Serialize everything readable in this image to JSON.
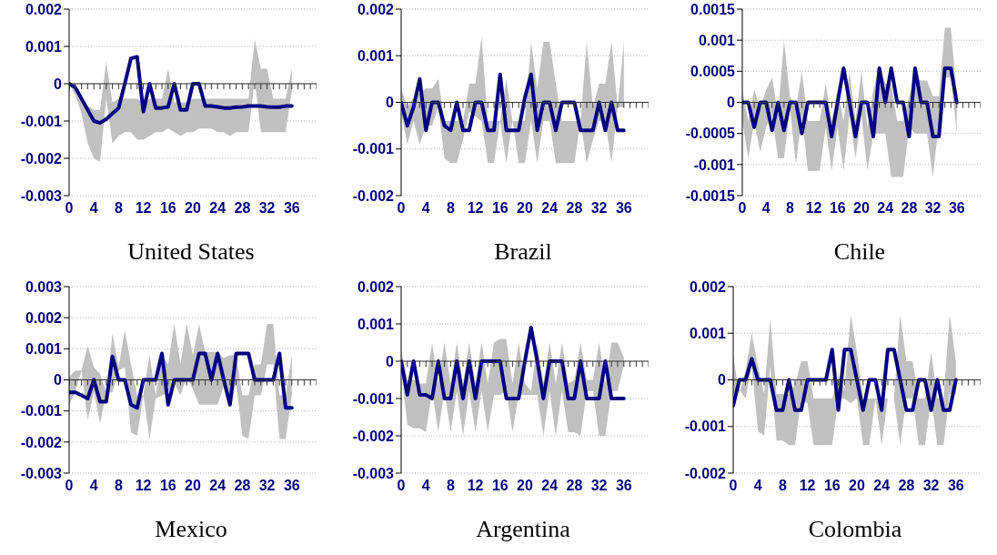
{
  "chart_data": [
    {
      "type": "line",
      "title": "United States",
      "x": [
        0,
        1,
        2,
        3,
        4,
        5,
        6,
        7,
        8,
        9,
        10,
        11,
        12,
        13,
        14,
        15,
        16,
        17,
        18,
        19,
        20,
        21,
        22,
        23,
        24,
        25,
        26,
        27,
        28,
        29,
        30,
        31,
        32,
        33,
        34,
        35,
        36
      ],
      "xlim": [
        0,
        40
      ],
      "xticks": [
        0,
        {
          "value": 1,
          "label": null
        },
        {
          "value": 2,
          "label": null
        },
        {
          "value": 3,
          "label": null
        },
        4,
        {
          "value": 5,
          "label": null
        },
        {
          "value": 6,
          "label": null
        },
        {
          "value": 7,
          "label": null
        },
        8,
        {
          "value": 9,
          "label": null
        },
        {
          "value": 10,
          "label": null
        },
        {
          "value": 11,
          "label": null
        },
        12,
        {
          "value": 13,
          "label": null
        },
        {
          "value": 14,
          "label": null
        },
        {
          "value": 15,
          "label": null
        },
        16,
        {
          "value": 17,
          "label": null
        },
        {
          "value": 18,
          "label": null
        },
        {
          "value": 19,
          "label": null
        },
        20,
        {
          "value": 21,
          "label": null
        },
        {
          "value": 22,
          "label": null
        },
        {
          "value": 23,
          "label": null
        },
        24,
        {
          "value": 25,
          "label": null
        },
        {
          "value": 26,
          "label": null
        },
        {
          "value": 27,
          "label": null
        },
        28,
        {
          "value": 29,
          "label": null
        },
        {
          "value": 30,
          "label": null
        },
        {
          "value": 31,
          "label": null
        },
        32,
        {
          "value": 33,
          "label": null
        },
        {
          "value": 34,
          "label": null
        },
        {
          "value": 35,
          "label": null
        },
        36,
        {
          "value": 37,
          "label": null
        },
        {
          "value": 38,
          "label": null
        },
        {
          "value": 39,
          "label": null
        },
        {
          "value": 40,
          "label": null
        }
      ],
      "ylim": [
        -0.003,
        0.002
      ],
      "yticks": [
        -0.003,
        -0.002,
        -0.001,
        0,
        0.001,
        0.002
      ],
      "grid": "y",
      "marker": "none",
      "line_style": "solid",
      "series": [
        {
          "color": "#000080",
          "values": [
            0,
            -0.0001,
            -0.0004,
            -0.0007,
            -0.001,
            -0.00105,
            -0.00095,
            -0.0008,
            -0.00065,
            0.0,
            0.00068,
            0.00072,
            -0.00075,
            0,
            -0.00065,
            -0.00065,
            -0.00062,
            0,
            -0.0007,
            -0.0007,
            0,
            0,
            -0.0006,
            -0.0006,
            -0.00062,
            -0.00065,
            -0.00065,
            -0.00063,
            -0.00062,
            -0.0006,
            -0.0006,
            -0.0006,
            -0.00062,
            -0.00063,
            -0.00063,
            -0.0006,
            -0.0006
          ],
          "upper": [
            0,
            -0.0001,
            -0.0004,
            -0.0006,
            -0.0007,
            -0.0007,
            0.0006,
            -0.0005,
            -0.0004,
            -0.0004,
            -0.0004,
            -0.0004,
            -0.0005,
            -0.0004,
            -0.0004,
            -0.0004,
            0.0004,
            -0.0005,
            -0.0005,
            -0.0005,
            -0.0004,
            -0.0004,
            -0.0004,
            -0.0004,
            -0.0004,
            -0.0004,
            -0.0004,
            -0.0004,
            -0.0004,
            -0.0004,
            0.0012,
            0.0004,
            0.0004,
            -0.0004,
            -0.0004,
            -0.0004,
            0.0004
          ],
          "lower": [
            0,
            -0.0003,
            -0.0008,
            -0.0016,
            -0.002,
            -0.0021,
            -0.0004,
            -0.0016,
            -0.0014,
            -0.0013,
            -0.0013,
            -0.0015,
            -0.0015,
            -0.0014,
            -0.0013,
            -0.0013,
            -0.0012,
            -0.0013,
            -0.0014,
            -0.0013,
            -0.0013,
            -0.0012,
            -0.0012,
            -0.0012,
            -0.0013,
            -0.0013,
            -0.0014,
            -0.0013,
            -0.0013,
            -0.0013,
            0.0001,
            -0.0013,
            -0.0013,
            -0.0013,
            -0.0013,
            -0.0013,
            -0.0002
          ]
        }
      ]
    },
    {
      "type": "line",
      "title": "Brazil",
      "x": [
        0,
        1,
        2,
        3,
        4,
        5,
        6,
        7,
        8,
        9,
        10,
        11,
        12,
        13,
        14,
        15,
        16,
        17,
        18,
        19,
        20,
        21,
        22,
        23,
        24,
        25,
        26,
        27,
        28,
        29,
        30,
        31,
        32,
        33,
        34,
        35,
        36
      ],
      "xlim": [
        0,
        40
      ],
      "xticks": [
        0,
        {
          "value": 1,
          "label": null
        },
        {
          "value": 2,
          "label": null
        },
        {
          "value": 3,
          "label": null
        },
        4,
        {
          "value": 5,
          "label": null
        },
        {
          "value": 6,
          "label": null
        },
        {
          "value": 7,
          "label": null
        },
        8,
        {
          "value": 9,
          "label": null
        },
        {
          "value": 10,
          "label": null
        },
        {
          "value": 11,
          "label": null
        },
        12,
        {
          "value": 13,
          "label": null
        },
        {
          "value": 14,
          "label": null
        },
        {
          "value": 15,
          "label": null
        },
        16,
        {
          "value": 17,
          "label": null
        },
        {
          "value": 18,
          "label": null
        },
        {
          "value": 19,
          "label": null
        },
        20,
        {
          "value": 21,
          "label": null
        },
        {
          "value": 22,
          "label": null
        },
        {
          "value": 23,
          "label": null
        },
        24,
        {
          "value": 25,
          "label": null
        },
        {
          "value": 26,
          "label": null
        },
        {
          "value": 27,
          "label": null
        },
        28,
        {
          "value": 29,
          "label": null
        },
        {
          "value": 30,
          "label": null
        },
        {
          "value": 31,
          "label": null
        },
        32,
        {
          "value": 33,
          "label": null
        },
        {
          "value": 34,
          "label": null
        },
        {
          "value": 35,
          "label": null
        },
        36,
        {
          "value": 37,
          "label": null
        },
        {
          "value": 38,
          "label": null
        },
        {
          "value": 39,
          "label": null
        },
        {
          "value": 40,
          "label": null
        }
      ],
      "ylim": [
        -0.002,
        0.002
      ],
      "yticks": [
        -0.002,
        -0.001,
        0,
        0.001,
        0.002
      ],
      "grid": "y",
      "marker": "none",
      "line_style": "solid",
      "series": [
        {
          "color": "#000080",
          "values": [
            0,
            -0.0005,
            -0.0001,
            0.0005,
            -0.0006,
            0,
            0,
            -0.0005,
            -0.0006,
            0,
            -0.0006,
            -0.0006,
            0,
            0,
            -0.0006,
            -0.0006,
            0.0006,
            -0.0006,
            -0.0006,
            -0.0006,
            0.0001,
            0.0006,
            -0.0006,
            0,
            0,
            -0.0006,
            0,
            0,
            0,
            -0.0006,
            -0.0006,
            -0.0006,
            0,
            -0.0006,
            0,
            -0.0006,
            -0.0006
          ],
          "upper": [
            0.0003,
            -0.0001,
            0.0001,
            0.0002,
            0.0003,
            0.0003,
            0.0005,
            -0.0004,
            -0.0004,
            -0.0004,
            -0.0004,
            0.0004,
            0.0004,
            0.0014,
            -0.0004,
            -0.0004,
            -0.0004,
            0.0005,
            -0.0004,
            -0.0004,
            -0.0004,
            0.0013,
            0.0003,
            0.0013,
            0.0013,
            0.0004,
            -0.0004,
            -0.0004,
            -0.0004,
            -0.0004,
            0.0013,
            -0.0001,
            0.0004,
            0.0004,
            0.0013,
            -0.0001,
            0.0013
          ],
          "lower": [
            -0.0002,
            -0.0009,
            -0.0004,
            -0.0009,
            -0.0005,
            -0.0005,
            -0.0001,
            -0.0012,
            -0.0013,
            -0.0013,
            -0.0008,
            -0.0002,
            -0.0003,
            -0.0004,
            -0.0013,
            -0.0013,
            -0.0004,
            -0.0013,
            -0.0004,
            -0.0013,
            -0.0013,
            -0.0004,
            -0.0013,
            -0.0004,
            -0.0004,
            -0.0013,
            -0.0013,
            -0.0013,
            -0.0013,
            -0.0004,
            -0.0013,
            -0.0008,
            -0.0004,
            -0.0004,
            -0.0013,
            -0.0001,
            -0.0001
          ]
        }
      ]
    },
    {
      "type": "line",
      "title": "Chile",
      "x": [
        0,
        1,
        2,
        3,
        4,
        5,
        6,
        7,
        8,
        9,
        10,
        11,
        12,
        13,
        14,
        15,
        16,
        17,
        18,
        19,
        20,
        21,
        22,
        23,
        24,
        25,
        26,
        27,
        28,
        29,
        30,
        31,
        32,
        33,
        34,
        35,
        36
      ],
      "xlim": [
        0,
        40
      ],
      "xticks": [
        0,
        {
          "value": 1,
          "label": null
        },
        {
          "value": 2,
          "label": null
        },
        {
          "value": 3,
          "label": null
        },
        4,
        {
          "value": 5,
          "label": null
        },
        {
          "value": 6,
          "label": null
        },
        {
          "value": 7,
          "label": null
        },
        8,
        {
          "value": 9,
          "label": null
        },
        {
          "value": 10,
          "label": null
        },
        {
          "value": 11,
          "label": null
        },
        12,
        {
          "value": 13,
          "label": null
        },
        {
          "value": 14,
          "label": null
        },
        {
          "value": 15,
          "label": null
        },
        16,
        {
          "value": 17,
          "label": null
        },
        {
          "value": 18,
          "label": null
        },
        {
          "value": 19,
          "label": null
        },
        20,
        {
          "value": 21,
          "label": null
        },
        {
          "value": 22,
          "label": null
        },
        {
          "value": 23,
          "label": null
        },
        24,
        {
          "value": 25,
          "label": null
        },
        {
          "value": 26,
          "label": null
        },
        {
          "value": 27,
          "label": null
        },
        28,
        {
          "value": 29,
          "label": null
        },
        {
          "value": 30,
          "label": null
        },
        {
          "value": 31,
          "label": null
        },
        32,
        {
          "value": 33,
          "label": null
        },
        {
          "value": 34,
          "label": null
        },
        {
          "value": 35,
          "label": null
        },
        36,
        {
          "value": 37,
          "label": null
        },
        {
          "value": 38,
          "label": null
        },
        {
          "value": 39,
          "label": null
        },
        {
          "value": 40,
          "label": null
        }
      ],
      "ylim": [
        -0.0015,
        0.0015
      ],
      "yticks": [
        -0.0015,
        -0.001,
        -0.0005,
        0,
        0.0005,
        0.001,
        0.0015
      ],
      "grid": "y",
      "marker": "none",
      "line_style": "solid",
      "series": [
        {
          "color": "#000080",
          "values": [
            0,
            0,
            -0.0004,
            0,
            0,
            -0.00045,
            0,
            -0.00045,
            0,
            0,
            -0.0005,
            0,
            0,
            0,
            0,
            -0.00055,
            0,
            0.00055,
            0,
            -0.00055,
            0,
            0,
            -0.00055,
            0.00055,
            0,
            0.00055,
            0,
            0,
            -0.00055,
            0.00055,
            0,
            0,
            -0.00055,
            -0.00055,
            0.00055,
            0.00055,
            0
          ],
          "upper": [
            0.0002,
            -0.0003,
            0.0002,
            -0.0001,
            0.0002,
            0.0004,
            -0.0002,
            0.001,
            0.0001,
            -0.0001,
            0.0005,
            -0.0003,
            -0.0003,
            -0.0003,
            0.0003,
            -0.0003,
            0.0002,
            -0.0003,
            0.0005,
            -0.0003,
            0.0005,
            -0.0004,
            0.0002,
            0.0006,
            0.0003,
            0.0003,
            -0.0003,
            -0.0003,
            0.0001,
            0.0004,
            0.00035,
            0.00035,
            0.0001,
            0.0001,
            0.0012,
            0.0012,
            0.0001
          ],
          "lower": [
            -0.0003,
            -0.0009,
            -0.0003,
            -0.0008,
            -0.0004,
            -0.0002,
            -0.0009,
            -0.0009,
            -0.0001,
            -0.001,
            -0.0002,
            -0.0011,
            -0.0011,
            -0.0011,
            -0.0004,
            -0.0011,
            -0.0004,
            -0.0011,
            -0.0002,
            -0.0009,
            -0.0002,
            -0.0011,
            -0.0005,
            -0.0005,
            -0.0005,
            -0.0012,
            -0.0012,
            -0.0012,
            -0.0004,
            -0.0005,
            -0.0005,
            -0.0005,
            -0.0012,
            -0.0003,
            0.0004,
            0.0004,
            -0.0005
          ]
        }
      ]
    },
    {
      "type": "line",
      "title": "Mexico",
      "x": [
        0,
        1,
        2,
        3,
        4,
        5,
        6,
        7,
        8,
        9,
        10,
        11,
        12,
        13,
        14,
        15,
        16,
        17,
        18,
        19,
        20,
        21,
        22,
        23,
        24,
        25,
        26,
        27,
        28,
        29,
        30,
        31,
        32,
        33,
        34,
        35,
        36
      ],
      "xlim": [
        0,
        40
      ],
      "xticks": [
        0,
        {
          "value": 1,
          "label": null
        },
        {
          "value": 2,
          "label": null
        },
        {
          "value": 3,
          "label": null
        },
        4,
        {
          "value": 5,
          "label": null
        },
        {
          "value": 6,
          "label": null
        },
        {
          "value": 7,
          "label": null
        },
        8,
        {
          "value": 9,
          "label": null
        },
        {
          "value": 10,
          "label": null
        },
        {
          "value": 11,
          "label": null
        },
        12,
        {
          "value": 13,
          "label": null
        },
        {
          "value": 14,
          "label": null
        },
        {
          "value": 15,
          "label": null
        },
        16,
        {
          "value": 17,
          "label": null
        },
        {
          "value": 18,
          "label": null
        },
        {
          "value": 19,
          "label": null
        },
        20,
        {
          "value": 21,
          "label": null
        },
        {
          "value": 22,
          "label": null
        },
        {
          "value": 23,
          "label": null
        },
        24,
        {
          "value": 25,
          "label": null
        },
        {
          "value": 26,
          "label": null
        },
        {
          "value": 27,
          "label": null
        },
        28,
        {
          "value": 29,
          "label": null
        },
        {
          "value": 30,
          "label": null
        },
        {
          "value": 31,
          "label": null
        },
        32,
        {
          "value": 33,
          "label": null
        },
        {
          "value": 34,
          "label": null
        },
        {
          "value": 35,
          "label": null
        },
        36,
        {
          "value": 37,
          "label": null
        },
        {
          "value": 38,
          "label": null
        },
        {
          "value": 39,
          "label": null
        },
        {
          "value": 40,
          "label": null
        }
      ],
      "ylim": [
        -0.003,
        0.003
      ],
      "yticks": [
        -0.003,
        -0.002,
        -0.001,
        0,
        0.001,
        0.002,
        0.003
      ],
      "grid": "y",
      "marker": "none",
      "line_style": "solid",
      "series": [
        {
          "color": "#000080",
          "values": [
            -0.0004,
            -0.0004,
            -0.0005,
            -0.0006,
            0,
            -0.0007,
            -0.0007,
            0.00075,
            0,
            0,
            -0.0008,
            -0.0009,
            0,
            0,
            0,
            0.00085,
            -0.0008,
            0,
            0,
            0,
            0,
            0.00085,
            0.00085,
            0,
            0.00085,
            0,
            -0.0008,
            0.00085,
            0.00085,
            0.00085,
            0,
            0,
            0,
            0,
            0.00085,
            -0.0009,
            -0.0009
          ],
          "upper": [
            0.0001,
            0.0003,
            0.0003,
            0.0011,
            0.0004,
            0.0002,
            -0.0004,
            0.0015,
            0.0004,
            0.0016,
            0.0005,
            -0.0005,
            -0.0005,
            0.0008,
            -0.0005,
            0.0008,
            0.0005,
            0.0018,
            0.0005,
            0.0018,
            0.0008,
            0.0018,
            0.0009,
            0.0009,
            0.0009,
            0.0007,
            0.0008,
            0.0008,
            -0.0005,
            -0.0005,
            0.0005,
            0.0005,
            0.0018,
            0.0018,
            -0.0005,
            -0.0005,
            0.0008
          ],
          "lower": [
            -0.0008,
            -0.0004,
            0.0003,
            -0.0013,
            -0.0004,
            -0.0014,
            -0.0004,
            -0.0004,
            0.0003,
            0.0004,
            -0.0017,
            -0.0018,
            -0.0005,
            -0.0019,
            -0.0006,
            -0.0005,
            -0.0004,
            -0.0001,
            -0.0005,
            0.0001,
            -0.0003,
            -0.0008,
            -0.0008,
            -0.0008,
            -0.0008,
            -0.0002,
            -0.0009,
            -0.0001,
            -0.0018,
            -0.0019,
            -0.0005,
            -0.0005,
            0.0005,
            0.0005,
            -0.0019,
            -0.0019,
            -0.0005
          ]
        }
      ]
    },
    {
      "type": "line",
      "title": "Argentina",
      "x": [
        0,
        1,
        2,
        3,
        4,
        5,
        6,
        7,
        8,
        9,
        10,
        11,
        12,
        13,
        14,
        15,
        16,
        17,
        18,
        19,
        20,
        21,
        22,
        23,
        24,
        25,
        26,
        27,
        28,
        29,
        30,
        31,
        32,
        33,
        34,
        35,
        36
      ],
      "xlim": [
        0,
        40
      ],
      "xticks": [
        0,
        {
          "value": 1,
          "label": null
        },
        {
          "value": 2,
          "label": null
        },
        {
          "value": 3,
          "label": null
        },
        4,
        {
          "value": 5,
          "label": null
        },
        {
          "value": 6,
          "label": null
        },
        {
          "value": 7,
          "label": null
        },
        8,
        {
          "value": 9,
          "label": null
        },
        {
          "value": 10,
          "label": null
        },
        {
          "value": 11,
          "label": null
        },
        12,
        {
          "value": 13,
          "label": null
        },
        {
          "value": 14,
          "label": null
        },
        {
          "value": 15,
          "label": null
        },
        16,
        {
          "value": 17,
          "label": null
        },
        {
          "value": 18,
          "label": null
        },
        {
          "value": 19,
          "label": null
        },
        20,
        {
          "value": 21,
          "label": null
        },
        {
          "value": 22,
          "label": null
        },
        {
          "value": 23,
          "label": null
        },
        24,
        {
          "value": 25,
          "label": null
        },
        {
          "value": 26,
          "label": null
        },
        {
          "value": 27,
          "label": null
        },
        28,
        {
          "value": 29,
          "label": null
        },
        {
          "value": 30,
          "label": null
        },
        {
          "value": 31,
          "label": null
        },
        32,
        {
          "value": 33,
          "label": null
        },
        {
          "value": 34,
          "label": null
        },
        {
          "value": 35,
          "label": null
        },
        36,
        {
          "value": 37,
          "label": null
        },
        {
          "value": 38,
          "label": null
        },
        {
          "value": 39,
          "label": null
        },
        {
          "value": 40,
          "label": null
        }
      ],
      "ylim": [
        -0.003,
        0.002
      ],
      "yticks": [
        -0.003,
        -0.002,
        -0.001,
        0,
        0.001,
        0.002
      ],
      "grid": "y",
      "marker": "none",
      "line_style": "solid",
      "series": [
        {
          "color": "#000080",
          "values": [
            0,
            -0.0009,
            0,
            -0.0009,
            -0.0009,
            -0.001,
            0,
            -0.001,
            -0.001,
            0,
            -0.001,
            0,
            -0.001,
            0,
            0,
            0,
            0,
            -0.001,
            -0.001,
            -0.001,
            0,
            0.0009,
            0,
            -0.001,
            0,
            0,
            0,
            -0.001,
            -0.001,
            0,
            -0.001,
            -0.001,
            -0.001,
            0,
            -0.001,
            -0.001,
            -0.001
          ],
          "upper": [
            0.0003,
            -0.0005,
            -0.0005,
            -0.0006,
            -0.0006,
            0.0005,
            -0.0006,
            0.0005,
            -0.0006,
            0.0005,
            -0.0006,
            0.0005,
            -0.0006,
            0.0005,
            -0.0006,
            0.0005,
            0.0006,
            0.0006,
            -0.0006,
            0.0005,
            -0.0006,
            -0.0008,
            0.0005,
            -0.0006,
            0.0005,
            -0.0006,
            0.0005,
            -0.0006,
            -0.0005,
            0.0005,
            -0.0005,
            -0.0005,
            0.0005,
            -0.0006,
            0.0005,
            0.0005,
            0.0001
          ],
          "lower": [
            -0.0002,
            -0.0017,
            -0.0018,
            -0.0018,
            -0.0019,
            -0.0008,
            -0.0019,
            -0.0008,
            -0.0019,
            -0.0008,
            -0.002,
            -0.0008,
            -0.0019,
            -0.0008,
            -0.0019,
            -0.0009,
            -0.0009,
            -0.0008,
            -0.0019,
            -0.0009,
            -0.0009,
            -0.0009,
            -0.0009,
            -0.002,
            -0.0008,
            -0.002,
            -0.0008,
            -0.0019,
            -0.0019,
            -0.002,
            -0.0008,
            -0.0008,
            -0.002,
            -0.002,
            -0.0008,
            -0.0008,
            -0.0001
          ]
        }
      ]
    },
    {
      "type": "line",
      "title": "Colombia",
      "x": [
        0,
        1,
        2,
        3,
        4,
        5,
        6,
        7,
        8,
        9,
        10,
        11,
        12,
        13,
        14,
        15,
        16,
        17,
        18,
        19,
        20,
        21,
        22,
        23,
        24,
        25,
        26,
        27,
        28,
        29,
        30,
        31,
        32,
        33,
        34,
        35,
        36
      ],
      "xlim": [
        0,
        40
      ],
      "xticks": [
        0,
        {
          "value": 1,
          "label": null
        },
        {
          "value": 2,
          "label": null
        },
        {
          "value": 3,
          "label": null
        },
        4,
        {
          "value": 5,
          "label": null
        },
        {
          "value": 6,
          "label": null
        },
        {
          "value": 7,
          "label": null
        },
        8,
        {
          "value": 9,
          "label": null
        },
        {
          "value": 10,
          "label": null
        },
        {
          "value": 11,
          "label": null
        },
        12,
        {
          "value": 13,
          "label": null
        },
        {
          "value": 14,
          "label": null
        },
        {
          "value": 15,
          "label": null
        },
        16,
        {
          "value": 17,
          "label": null
        },
        {
          "value": 18,
          "label": null
        },
        {
          "value": 19,
          "label": null
        },
        20,
        {
          "value": 21,
          "label": null
        },
        {
          "value": 22,
          "label": null
        },
        {
          "value": 23,
          "label": null
        },
        24,
        {
          "value": 25,
          "label": null
        },
        {
          "value": 26,
          "label": null
        },
        {
          "value": 27,
          "label": null
        },
        28,
        {
          "value": 29,
          "label": null
        },
        {
          "value": 30,
          "label": null
        },
        {
          "value": 31,
          "label": null
        },
        32,
        {
          "value": 33,
          "label": null
        },
        {
          "value": 34,
          "label": null
        },
        {
          "value": 35,
          "label": null
        },
        36,
        {
          "value": 37,
          "label": null
        },
        {
          "value": 38,
          "label": null
        },
        {
          "value": 39,
          "label": null
        },
        {
          "value": 40,
          "label": null
        }
      ],
      "ylim": [
        -0.002,
        0.002
      ],
      "yticks": [
        -0.002,
        -0.001,
        0,
        0.001,
        0.002
      ],
      "grid": "y",
      "marker": "none",
      "line_style": "solid",
      "series": [
        {
          "color": "#000080",
          "values": [
            -0.00055,
            0,
            0,
            0.00045,
            0,
            0,
            0,
            -0.00065,
            -0.00065,
            0,
            -0.00065,
            -0.00065,
            0,
            0,
            0,
            0,
            0.00065,
            -0.00065,
            0.00065,
            0.00065,
            0,
            -0.00065,
            0,
            0,
            -0.00065,
            0.00065,
            0.00065,
            0,
            -0.00065,
            -0.00065,
            0,
            0,
            -0.00065,
            0,
            -0.00065,
            -0.00065,
            0
          ],
          "upper": [
            0.0005,
            -0.0003,
            0.0002,
            0.001,
            0.0003,
            -0.0003,
            0.0013,
            -0.0003,
            -0.0003,
            -0.0003,
            -0.0001,
            0.0004,
            0.0004,
            -0.0004,
            -0.0004,
            -0.0004,
            -0.0004,
            0.0001,
            -0.0002,
            0.0014,
            0.0006,
            -0.0004,
            -0.0004,
            -0.0004,
            -0.0004,
            -0.0004,
            -0.0004,
            0.0014,
            0.0004,
            0.0004,
            -0.0004,
            -0.0004,
            0.0006,
            -0.0004,
            -0.0004,
            0.0014,
            0.0004
          ],
          "lower": [
            -0.0003,
            -0.0002,
            -0.0004,
            0.0003,
            -0.0011,
            -0.0012,
            0.0003,
            -0.0013,
            -0.0013,
            -0.0014,
            -0.0014,
            -0.0004,
            -0.0005,
            -0.0014,
            -0.0014,
            -0.0014,
            -0.0014,
            -0.0004,
            -0.0004,
            -0.0005,
            -0.0004,
            -0.0014,
            -0.0014,
            -0.0004,
            -0.0014,
            -0.0004,
            -0.0004,
            -0.0014,
            -0.0004,
            -0.0004,
            -0.0014,
            -0.0014,
            -0.0004,
            -0.0014,
            -0.0014,
            -0.0003,
            -0.0003
          ]
        }
      ]
    }
  ]
}
